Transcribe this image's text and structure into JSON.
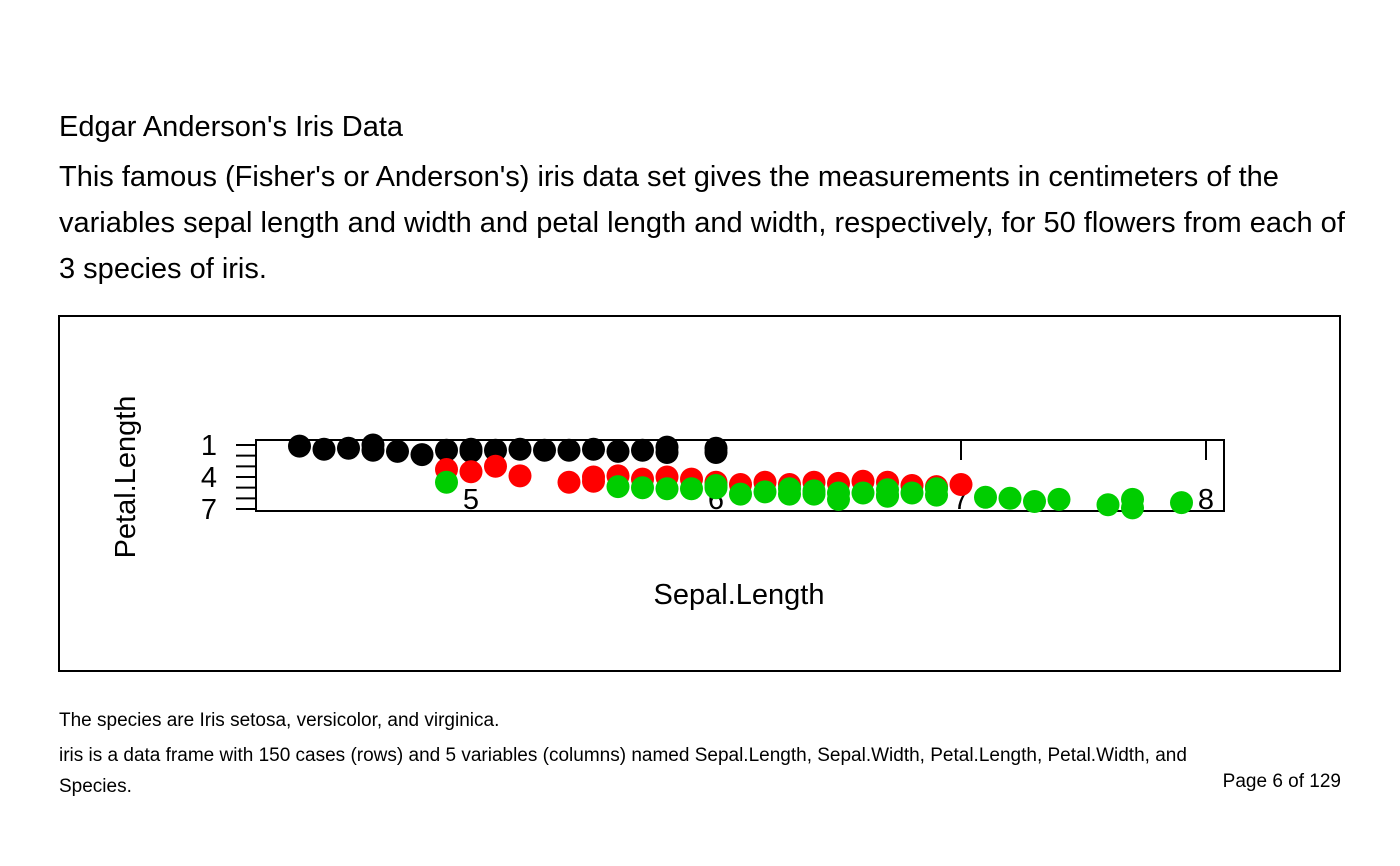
{
  "document": {
    "title": "Edgar Anderson's Iris Data",
    "description": "This famous (Fisher's or Anderson's) iris data set gives the measurements in centimeters of the variables sepal length and width and petal length and width, respectively, for 50 flowers from each of 3 species of iris.",
    "note_species": "The species are Iris setosa, versicolor, and virginica.",
    "note_format": "iris is a data frame with 150 cases (rows) and 5 variables (columns) named Sepal.Length, Sepal.Width, Petal.Length, Petal.Width, and Species.",
    "page_indicator": "Page 6 of 129"
  },
  "chart_data": {
    "type": "scatter",
    "xlabel": "Sepal.Length",
    "ylabel": "Petal.Length",
    "xlim": [
      4.3,
      7.9
    ],
    "ylim": [
      1,
      6.9
    ],
    "y_reversed": true,
    "x_ticks": [
      "5",
      "6",
      "7",
      "8"
    ],
    "y_ticks": [
      "1",
      "4",
      "7"
    ],
    "grid": false,
    "legend": "none",
    "series_colors": [
      "#000000",
      "#ff0000",
      "#00cd00"
    ],
    "series": [
      {
        "points": [
          [
            4.3,
            1.1
          ],
          [
            4.4,
            1.4
          ],
          [
            4.5,
            1.3
          ],
          [
            4.6,
            1.5
          ],
          [
            4.6,
            1.0
          ],
          [
            4.7,
            1.6
          ],
          [
            4.8,
            1.9
          ],
          [
            4.9,
            1.5
          ],
          [
            5.0,
            1.4
          ],
          [
            5.0,
            1.6
          ],
          [
            5.1,
            1.5
          ],
          [
            5.2,
            1.4
          ],
          [
            5.3,
            1.5
          ],
          [
            5.4,
            1.5
          ],
          [
            5.5,
            1.4
          ],
          [
            5.6,
            1.6
          ],
          [
            5.7,
            1.5
          ],
          [
            5.8,
            1.2
          ],
          [
            5.8,
            1.7
          ],
          [
            6.0,
            1.3
          ],
          [
            6.0,
            1.7
          ]
        ]
      },
      {
        "points": [
          [
            4.9,
            3.3
          ],
          [
            5.0,
            3.5
          ],
          [
            5.1,
            3.0
          ],
          [
            5.2,
            3.9
          ],
          [
            5.4,
            4.5
          ],
          [
            5.5,
            4.0
          ],
          [
            5.5,
            4.4
          ],
          [
            5.6,
            3.9
          ],
          [
            5.7,
            4.2
          ],
          [
            5.8,
            4.0
          ],
          [
            5.9,
            4.2
          ],
          [
            6.0,
            4.5
          ],
          [
            6.1,
            4.7
          ],
          [
            6.2,
            4.5
          ],
          [
            6.3,
            4.7
          ],
          [
            6.4,
            4.5
          ],
          [
            6.5,
            4.6
          ],
          [
            6.6,
            4.4
          ],
          [
            6.7,
            4.5
          ],
          [
            6.8,
            4.8
          ],
          [
            6.9,
            4.9
          ],
          [
            7.0,
            4.7
          ]
        ]
      },
      {
        "points": [
          [
            4.9,
            4.5
          ],
          [
            5.6,
            4.9
          ],
          [
            5.7,
            5.0
          ],
          [
            5.8,
            5.1
          ],
          [
            5.9,
            5.1
          ],
          [
            6.0,
            5.0
          ],
          [
            6.0,
            4.8
          ],
          [
            6.1,
            5.6
          ],
          [
            6.2,
            5.4
          ],
          [
            6.3,
            5.1
          ],
          [
            6.3,
            5.6
          ],
          [
            6.4,
            5.3
          ],
          [
            6.4,
            5.6
          ],
          [
            6.5,
            5.5
          ],
          [
            6.5,
            6.1
          ],
          [
            6.6,
            5.5
          ],
          [
            6.7,
            5.2
          ],
          [
            6.7,
            5.7
          ],
          [
            6.8,
            5.5
          ],
          [
            6.9,
            5.7
          ],
          [
            7.1,
            5.9
          ],
          [
            7.2,
            6.0
          ],
          [
            7.3,
            6.3
          ],
          [
            7.4,
            6.1
          ],
          [
            7.6,
            6.6
          ],
          [
            7.7,
            6.1
          ],
          [
            7.7,
            6.9
          ],
          [
            7.9,
            6.4
          ],
          [
            6.7,
            5.8
          ],
          [
            6.9,
            5.1
          ]
        ]
      }
    ]
  }
}
